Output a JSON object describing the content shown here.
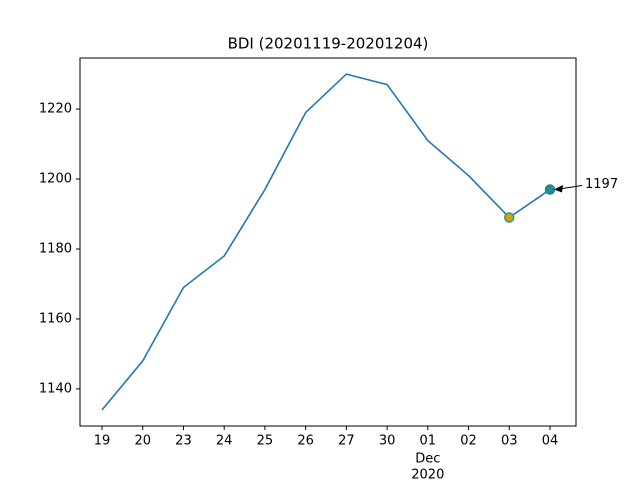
{
  "chart_data": {
    "type": "line",
    "title": "BDI (20201119-20201204)",
    "categories": [
      "19",
      "20",
      "23",
      "24",
      "25",
      "26",
      "27",
      "30",
      "01",
      "02",
      "03",
      "04"
    ],
    "x_sublabels": [
      "Dec",
      "2020"
    ],
    "series": [
      {
        "name": "BDI",
        "color": "#1f77b4",
        "values": [
          1134,
          1148,
          1169,
          1178,
          1197,
          1219,
          1230,
          1227,
          1211,
          1201,
          1189,
          1197
        ]
      }
    ],
    "points": [
      {
        "x": "03",
        "y": 1189,
        "fill": "#d4a017",
        "edge": "#2a9d8f"
      },
      {
        "x": "04",
        "y": 1197,
        "fill": "#1f8f8f",
        "edge": "#2a7a9a"
      }
    ],
    "annotation": {
      "text": "1197",
      "value": 1197
    },
    "ylim": [
      1129.4,
      1234.6
    ],
    "yticks": [
      1140,
      1160,
      1180,
      1200,
      1220
    ]
  }
}
